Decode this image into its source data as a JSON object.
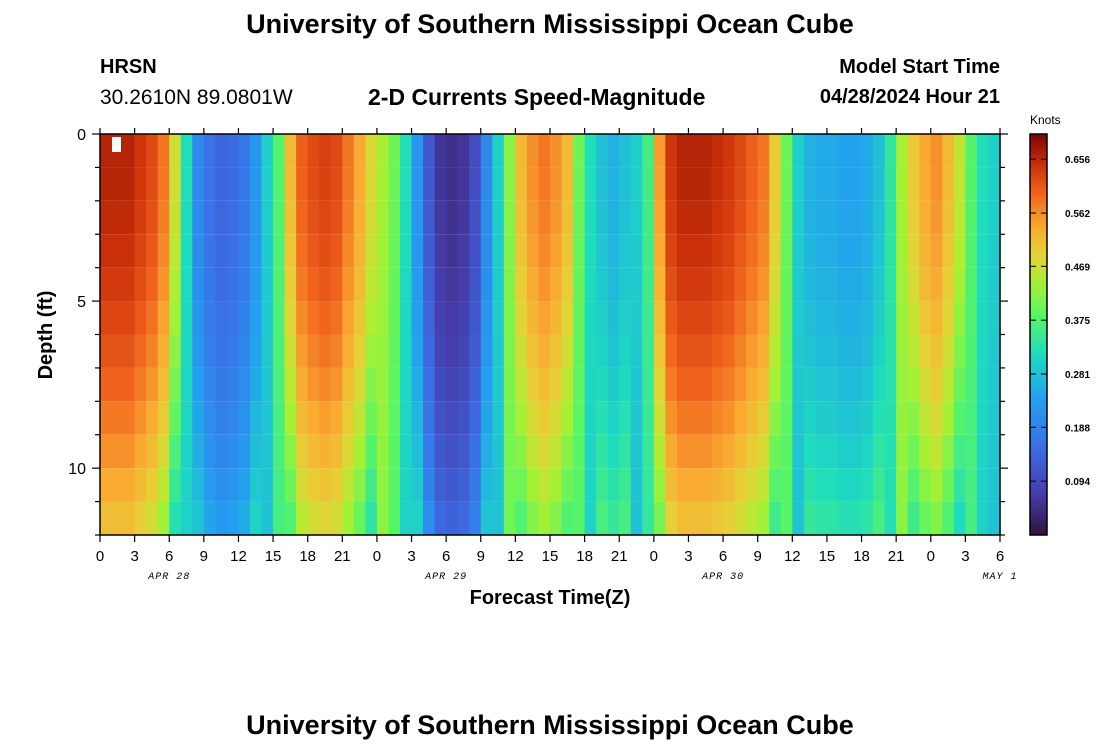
{
  "header": {
    "title": "University of Southern Mississippi Ocean Cube",
    "station": "HRSN",
    "coords": "30.2610N  89.0801W",
    "subtitle": "2-D Currents Speed-Magnitude",
    "model_start_label": "Model Start Time",
    "model_start_value": "04/28/2024 Hour 21"
  },
  "footer": {
    "title": "University of Southern Mississippi Ocean Cube"
  },
  "chart_data": {
    "type": "heatmap",
    "title": "2-D Currents Speed-Magnitude",
    "xlabel": "Forecast Time(Z)",
    "ylabel": "Depth (ft)",
    "x_ticks": [
      "0",
      "3",
      "6",
      "9",
      "12",
      "15",
      "18",
      "21",
      "0",
      "3",
      "6",
      "9",
      "12",
      "15",
      "18",
      "21",
      "0",
      "3",
      "6",
      "9",
      "12",
      "15",
      "18",
      "21",
      "0",
      "3",
      "6"
    ],
    "date_labels": [
      {
        "text": "APR 28",
        "hour": 6
      },
      {
        "text": "APR 29",
        "hour": 30
      },
      {
        "text": "APR 30",
        "hour": 54
      },
      {
        "text": "MAY 1",
        "hour": 78
      }
    ],
    "x_range_hours": [
      0,
      78
    ],
    "y_range_ft": [
      0,
      12
    ],
    "y_ticks": [
      0,
      5,
      10
    ],
    "colorbar": {
      "unit": "Knots",
      "range": [
        0,
        0.7
      ],
      "ticks": [
        "0.656",
        "0.562",
        "0.469",
        "0.375",
        "0.281",
        "0.188",
        "0.094"
      ]
    },
    "surface_profile_knots": [
      0.66,
      0.66,
      0.66,
      0.64,
      0.62,
      0.58,
      0.47,
      0.32,
      0.2,
      0.16,
      0.14,
      0.15,
      0.17,
      0.22,
      0.3,
      0.38,
      0.52,
      0.6,
      0.62,
      0.63,
      0.62,
      0.58,
      0.54,
      0.48,
      0.44,
      0.4,
      0.32,
      0.22,
      0.12,
      0.06,
      0.05,
      0.06,
      0.1,
      0.2,
      0.3,
      0.42,
      0.52,
      0.56,
      0.58,
      0.56,
      0.52,
      0.4,
      0.32,
      0.28,
      0.26,
      0.28,
      0.3,
      0.36,
      0.55,
      0.64,
      0.66,
      0.66,
      0.66,
      0.65,
      0.64,
      0.62,
      0.6,
      0.58,
      0.5,
      0.4,
      0.3,
      0.26,
      0.25,
      0.25,
      0.24,
      0.24,
      0.25,
      0.28,
      0.34,
      0.44,
      0.5,
      0.54,
      0.56,
      0.52,
      0.46,
      0.38,
      0.32,
      0.3
    ],
    "depth_levels_ft": [
      0,
      1,
      2,
      3,
      4,
      5,
      6,
      7,
      8,
      9,
      10,
      11,
      12
    ]
  }
}
